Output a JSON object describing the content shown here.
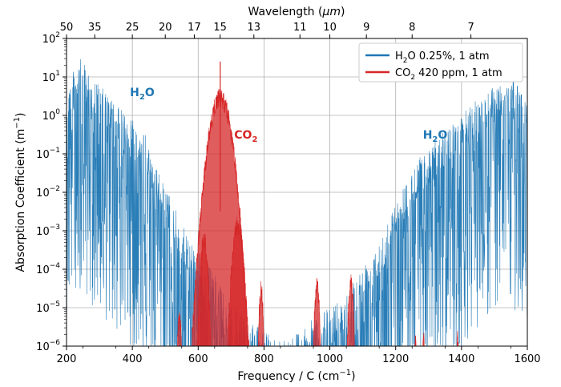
{
  "chart_data": {
    "type": "line",
    "xlabel": "Frequency / C",
    "xlabel_unit_base": "cm",
    "xlabel_unit_exp": "−1",
    "ylabel": "Absorption Coefficient",
    "ylabel_unit_base": "m",
    "ylabel_unit_exp": "−1",
    "top_xlabel": "Wavelength",
    "top_xlabel_unit": "μm",
    "xlim": [
      200,
      1600
    ],
    "ylim_log10": [
      -6,
      2
    ],
    "y_scale": "log",
    "grid": true,
    "legend_position": "top-right",
    "x_ticks": [
      200,
      400,
      600,
      800,
      1000,
      1200,
      1400,
      1600
    ],
    "x_tick_labels": [
      "200",
      "400",
      "600",
      "800",
      "1000",
      "1200",
      "1400",
      "1600"
    ],
    "y_ticks_exp": [
      2,
      1,
      0,
      -1,
      -2,
      -3,
      -4,
      -5,
      -6
    ],
    "y_tick_labels": [
      {
        "base": "10",
        "exp": "2"
      },
      {
        "base": "10",
        "exp": "1"
      },
      {
        "base": "10",
        "exp": "0"
      },
      {
        "base": "10",
        "exp": "−1"
      },
      {
        "base": "10",
        "exp": "−2"
      },
      {
        "base": "10",
        "exp": "−3"
      },
      {
        "base": "10",
        "exp": "−4"
      },
      {
        "base": "10",
        "exp": "−5"
      },
      {
        "base": "10",
        "exp": "−6"
      }
    ],
    "top_ticks_um": [
      50,
      35,
      25,
      20,
      17,
      15,
      13,
      11,
      10,
      9,
      8,
      7
    ],
    "top_tick_labels": [
      "50",
      "35",
      "25",
      "20",
      "17",
      "15",
      "13",
      "11",
      "10",
      "9",
      "8",
      "7"
    ],
    "series": [
      {
        "name": "H2O 0.25%, 1 atm",
        "legend_parts": {
          "pre": "H",
          "sub": "2",
          "post": "O 0.25%, 1 atm"
        },
        "color": "#1f77b4",
        "envelope_log10": [
          [
            200,
            0.8
          ],
          [
            240,
            1.5
          ],
          [
            280,
            1.0
          ],
          [
            320,
            0.6
          ],
          [
            360,
            0.2
          ],
          [
            400,
            0.0
          ],
          [
            440,
            -0.5
          ],
          [
            480,
            -1.5
          ],
          [
            520,
            -2.2
          ],
          [
            560,
            -3.0
          ],
          [
            600,
            -3.5
          ],
          [
            640,
            -4.0
          ],
          [
            680,
            -4.5
          ],
          [
            720,
            -5.0
          ],
          [
            760,
            -5.4
          ],
          [
            800,
            -5.6
          ],
          [
            840,
            -5.8
          ],
          [
            880,
            -5.7
          ],
          [
            920,
            -5.5
          ],
          [
            960,
            -5.2
          ],
          [
            1000,
            -5.0
          ],
          [
            1040,
            -4.6
          ],
          [
            1080,
            -4.2
          ],
          [
            1120,
            -3.6
          ],
          [
            1160,
            -3.0
          ],
          [
            1200,
            -2.3
          ],
          [
            1240,
            -1.5
          ],
          [
            1280,
            -1.0
          ],
          [
            1320,
            -0.6
          ],
          [
            1360,
            -0.3
          ],
          [
            1400,
            0.0
          ],
          [
            1440,
            0.4
          ],
          [
            1480,
            0.7
          ],
          [
            1520,
            0.9
          ],
          [
            1560,
            0.9
          ],
          [
            1600,
            0.5
          ]
        ]
      },
      {
        "name": "CO2 420 ppm, 1 atm",
        "legend_parts": {
          "pre": "CO",
          "sub": "2",
          "post": " 420 ppm, 1 atm"
        },
        "color": "#d62728",
        "bands": [
          {
            "center": 667,
            "peak_log10": 0.7,
            "width": 70
          },
          {
            "center": 720,
            "peak_log10": -2.6,
            "width": 35
          },
          {
            "center": 618,
            "peak_log10": -3.0,
            "width": 25
          },
          {
            "center": 791,
            "peak_log10": -4.3,
            "width": 15
          },
          {
            "center": 543,
            "peak_log10": -5.0,
            "width": 15
          },
          {
            "center": 961,
            "peak_log10": -4.2,
            "width": 18
          },
          {
            "center": 1064,
            "peak_log10": -4.1,
            "width": 18
          },
          {
            "center": 1260,
            "peak_log10": -5.7,
            "width": 8
          },
          {
            "center": 1285,
            "peak_log10": -5.6,
            "width": 8
          },
          {
            "center": 1388,
            "peak_log10": -5.6,
            "width": 10
          }
        ]
      }
    ],
    "annotations": [
      {
        "parts": {
          "pre": "H",
          "sub": "2",
          "post": "O"
        },
        "x": 430,
        "y_log10": 0.5,
        "color": "#1f77b4"
      },
      {
        "parts": {
          "pre": "CO",
          "sub": "2",
          "post": ""
        },
        "x": 745,
        "y_log10": -0.6,
        "color": "#d62728"
      },
      {
        "parts": {
          "pre": "H",
          "sub": "2",
          "post": "O"
        },
        "x": 1320,
        "y_log10": -0.6,
        "color": "#1f77b4"
      }
    ]
  }
}
